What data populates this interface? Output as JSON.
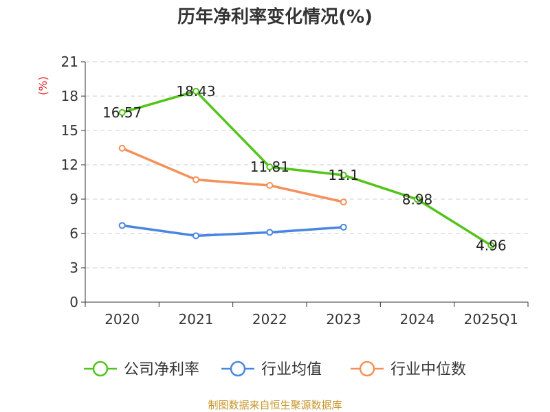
{
  "chart_data": {
    "type": "line",
    "title": "历年净利率变化情况(%)",
    "ylabel": "(%)",
    "categories": [
      "2020",
      "2021",
      "2022",
      "2023",
      "2024",
      "2025Q1"
    ],
    "ylim": [
      0,
      21
    ],
    "yticks": [
      0,
      3,
      6,
      9,
      12,
      15,
      18,
      21
    ],
    "grid": true,
    "legend_position": "bottom",
    "series": [
      {
        "name": "公司净利率",
        "color": "#52c41a",
        "values": [
          16.57,
          18.43,
          11.81,
          11.1,
          8.98,
          4.96
        ],
        "data_labels": [
          "16.57",
          "18.43",
          "11.81",
          "11.1",
          "8.98",
          "4.96"
        ]
      },
      {
        "name": "行业均值",
        "color": "#4a86e0",
        "values": [
          6.7,
          5.8,
          6.1,
          6.55,
          null,
          null
        ]
      },
      {
        "name": "行业中位数",
        "color": "#f4915a",
        "values": [
          13.45,
          10.7,
          10.2,
          8.75,
          null,
          null
        ]
      }
    ]
  },
  "source_text": "制图数据来自恒生聚源数据库",
  "colors": {
    "ylabel": "#e02020",
    "source": "#c8952a",
    "axis": "#333333",
    "grid": "#cccccc"
  }
}
